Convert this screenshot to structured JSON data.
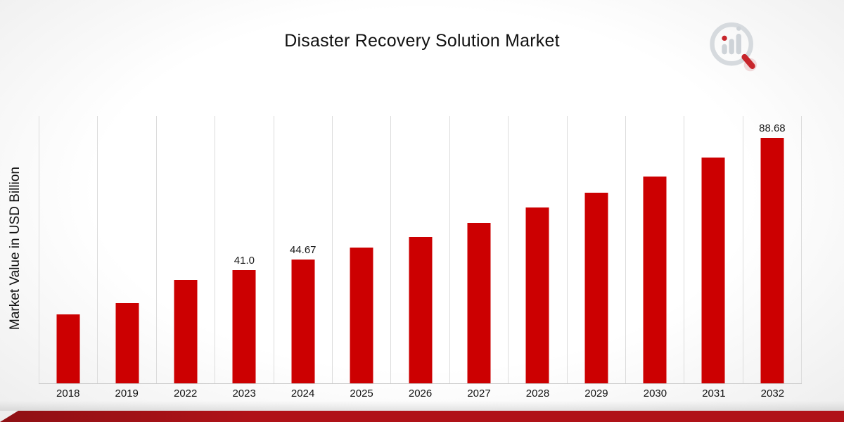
{
  "title": "Disaster Recovery Solution Market",
  "y_axis_label": "Market Value in USD Billion",
  "logo": {
    "name": "market-research-magnifier-logo"
  },
  "colors": {
    "bar": "#cc0001",
    "footer_stripe": "#b01218",
    "gridline": "#dcdcdc",
    "text": "#111111",
    "logo_gray": "#ced3d8",
    "logo_red": "#c7252b"
  },
  "chart_data": {
    "type": "bar",
    "title": "Disaster Recovery Solution Market",
    "xlabel": "",
    "ylabel": "Market Value in USD Billion",
    "ylim": [
      0,
      96.5
    ],
    "grid": "vertical",
    "legend": "none",
    "categories": [
      "2018",
      "2019",
      "2022",
      "2023",
      "2024",
      "2025",
      "2026",
      "2027",
      "2028",
      "2029",
      "2030",
      "2031",
      "2032"
    ],
    "values": [
      24.9,
      28.95,
      37.3,
      41.0,
      44.67,
      48.9,
      52.9,
      57.9,
      63.4,
      68.8,
      74.6,
      81.4,
      88.68
    ],
    "data_labels": {
      "2023": "41.0",
      "2024": "44.67",
      "2032": "88.68"
    }
  }
}
